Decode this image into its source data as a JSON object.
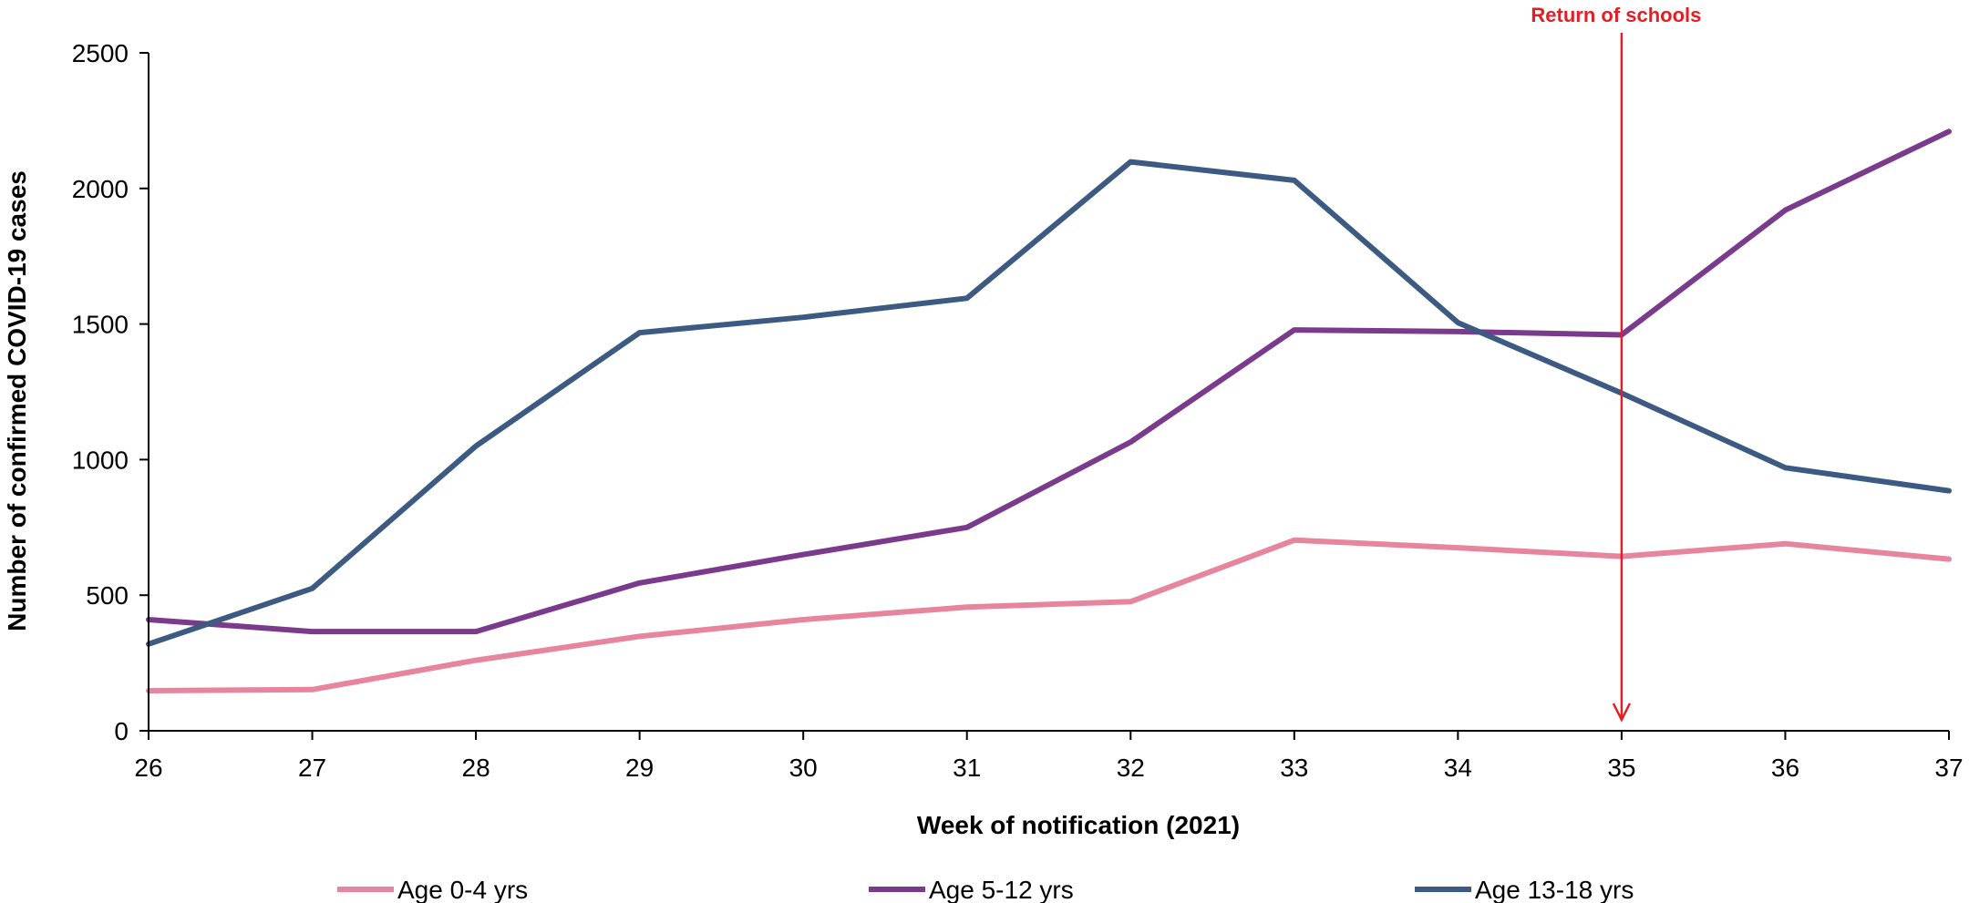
{
  "chart_data": {
    "type": "line",
    "xlabel": "Week of notification (2021)",
    "ylabel": "Number of confirmed COVID-19 cases",
    "x": [
      26,
      27,
      28,
      29,
      30,
      31,
      32,
      33,
      34,
      35,
      36,
      37
    ],
    "ylim": [
      0,
      2500
    ],
    "yticks": [
      0,
      500,
      1000,
      1500,
      2000,
      2500
    ],
    "grid": false,
    "legend_position": "bottom",
    "series": [
      {
        "name": "Age 0-4 yrs",
        "color": "#e8859e",
        "values": [
          148,
          152,
          260,
          348,
          410,
          456,
          476,
          703,
          675,
          643,
          690,
          633
        ]
      },
      {
        "name": "Age 5-12 yrs",
        "color": "#7b3b8c",
        "values": [
          410,
          366,
          366,
          545,
          650,
          750,
          1065,
          1478,
          1472,
          1460,
          1920,
          2210
        ]
      },
      {
        "name": "Age 13-18 yrs",
        "color": "#3c5a82",
        "values": [
          320,
          525,
          1050,
          1468,
          1525,
          1595,
          2098,
          2030,
          1505,
          1245,
          970,
          885
        ]
      }
    ],
    "annotation": {
      "label": "Return of schools",
      "x": 35,
      "color": "#e31e24"
    }
  }
}
